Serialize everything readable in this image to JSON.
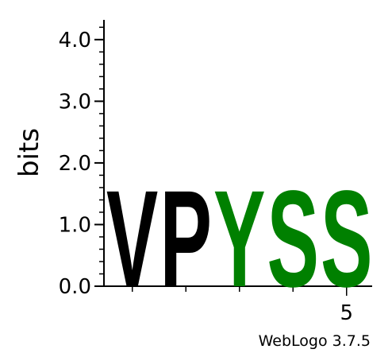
{
  "chart_data": {
    "type": "sequence-logo",
    "ylabel": "bits",
    "ylim": [
      0,
      4.32
    ],
    "yticks": [
      "0.0",
      "1.0",
      "2.0",
      "3.0",
      "4.0"
    ],
    "ytick_values": [
      0,
      1,
      2,
      3,
      4
    ],
    "minor_tick_step": 0.2,
    "positions": [
      1,
      2,
      3,
      4,
      5
    ],
    "xtick_labels": [
      "",
      "",
      "",
      "",
      "5"
    ],
    "columns": [
      {
        "position": 1,
        "letter": "V",
        "bits": 1.76,
        "color": "#000000"
      },
      {
        "position": 2,
        "letter": "P",
        "bits": 1.76,
        "color": "#000000"
      },
      {
        "position": 3,
        "letter": "Y",
        "bits": 1.76,
        "color": "#008000"
      },
      {
        "position": 4,
        "letter": "S",
        "bits": 1.76,
        "color": "#008000"
      },
      {
        "position": 5,
        "letter": "S",
        "bits": 1.76,
        "color": "#008000"
      }
    ]
  },
  "footer": {
    "credit": "WebLogo 3.7.5"
  }
}
